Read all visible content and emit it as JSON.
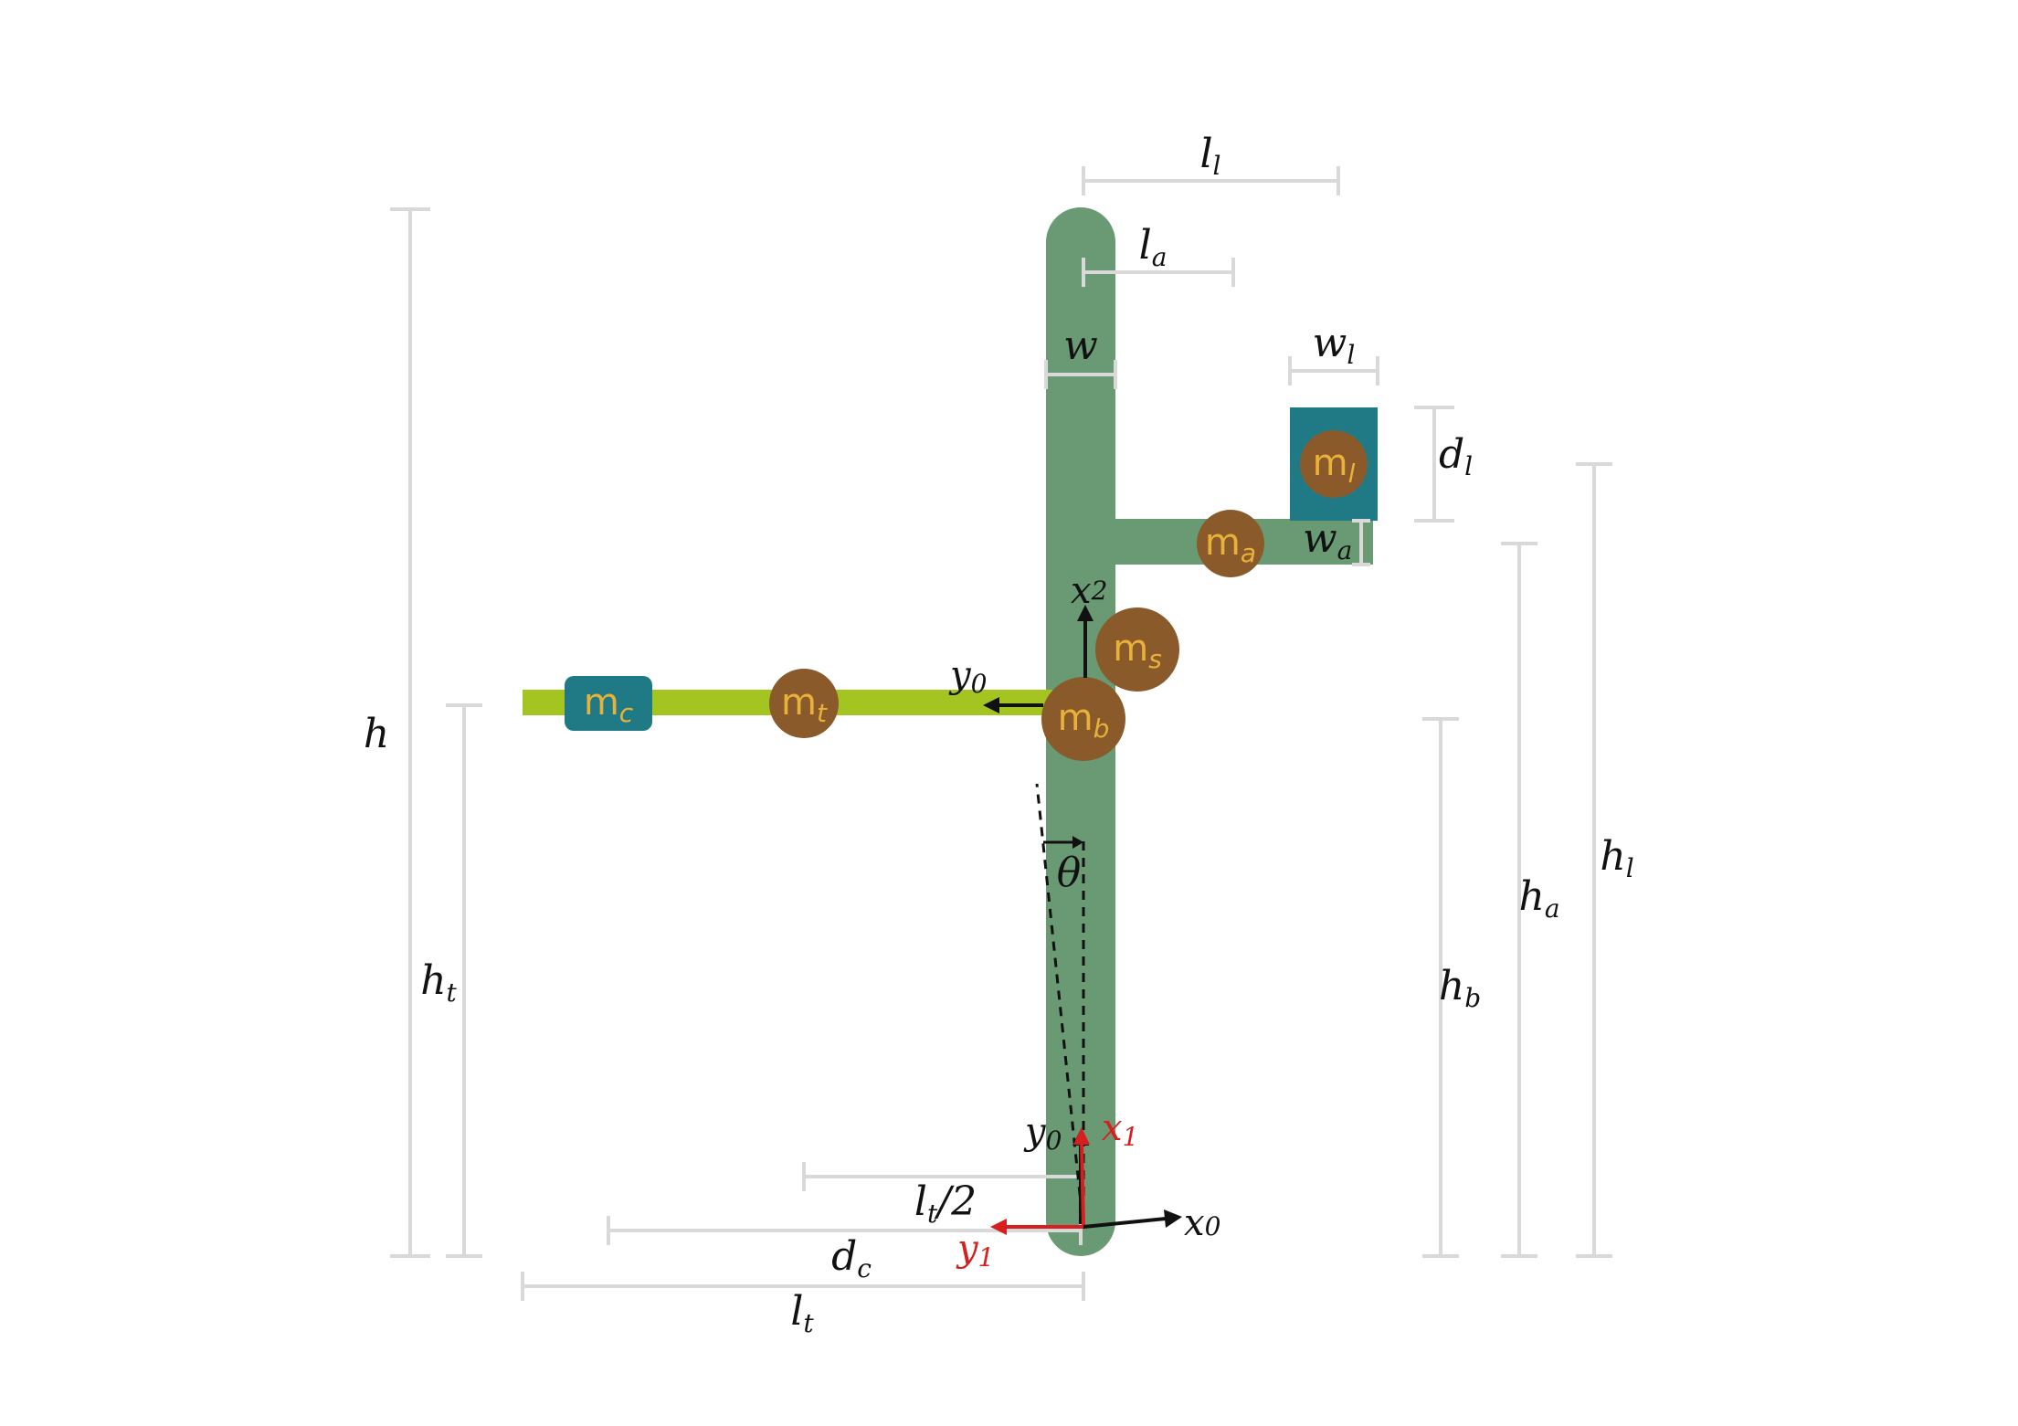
{
  "colors": {
    "body": "#6a9a74",
    "tail": "#a4c521",
    "counterweight": "#1f7a86",
    "mass": "#8b5a2b",
    "mass_text": "#e8b23a",
    "dimension": "#d9d9d9",
    "frame1": "#d81f1f",
    "frame0": "#111111"
  },
  "masses": {
    "ml": {
      "base": "m",
      "sub": "l"
    },
    "ma": {
      "base": "m",
      "sub": "a"
    },
    "ms": {
      "base": "m",
      "sub": "s"
    },
    "mb": {
      "base": "m",
      "sub": "b"
    },
    "mt": {
      "base": "m",
      "sub": "t"
    },
    "mc": {
      "base": "m",
      "sub": "c"
    }
  },
  "dimensions": {
    "l_l": {
      "base": "l",
      "sub": "l"
    },
    "l_a": {
      "base": "l",
      "sub": "a"
    },
    "w": {
      "base": "w",
      "sub": ""
    },
    "w_l": {
      "base": "w",
      "sub": "l"
    },
    "d_l": {
      "base": "d",
      "sub": "l"
    },
    "w_a": {
      "base": "w",
      "sub": "a"
    },
    "h": {
      "base": "h",
      "sub": ""
    },
    "h_t": {
      "base": "h",
      "sub": "t"
    },
    "h_b": {
      "base": "h",
      "sub": "b"
    },
    "h_a": {
      "base": "h",
      "sub": "a"
    },
    "h_l": {
      "base": "h",
      "sub": "l"
    },
    "lt_half": {
      "base": "l",
      "sub": "t",
      "tail": "/2"
    },
    "d_c": {
      "base": "d",
      "sub": "c"
    },
    "l_t": {
      "base": "l",
      "sub": "t"
    }
  },
  "axes": {
    "x2": {
      "base": "x",
      "sub": "2"
    },
    "y0_top": {
      "base": "y",
      "sub": "0"
    },
    "y0_bottom": {
      "base": "y",
      "sub": "0"
    },
    "x1": {
      "base": "x",
      "sub": "1"
    },
    "y1": {
      "base": "y",
      "sub": "1"
    },
    "x0": {
      "base": "x",
      "sub": "0"
    },
    "theta": "θ"
  }
}
